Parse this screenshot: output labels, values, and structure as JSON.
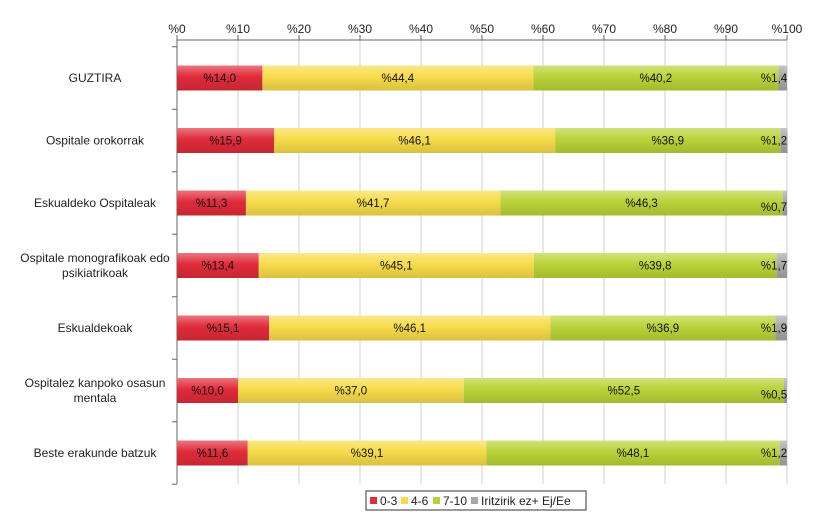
{
  "chart_data": {
    "type": "bar",
    "orientation": "horizontal",
    "stacked": true,
    "xlim": [
      0,
      100
    ],
    "x_ticks": [
      "%0",
      "%10",
      "%20",
      "%30",
      "%40",
      "%50",
      "%60",
      "%70",
      "%80",
      "%90",
      "%100"
    ],
    "categories": [
      [
        "GUZTIRA"
      ],
      [
        "Ospitale  orokorrak"
      ],
      [
        "Eskualdeko Ospitaleak"
      ],
      [
        "Ospitale monografikoak edo",
        "psikiatrikoak"
      ],
      [
        "Eskualdekoak"
      ],
      [
        "Ospitalez  kanpoko osasun",
        "mentala"
      ],
      [
        "Beste erakunde batzuk"
      ]
    ],
    "series": [
      {
        "name": "0-3",
        "color": "#e02b3a",
        "values": [
          14.0,
          15.9,
          11.3,
          13.4,
          15.1,
          10.0,
          11.6
        ],
        "labels": [
          "%14,0",
          "%15,9",
          "%11,3",
          "%13,4",
          "%15,1",
          "%10,0",
          "%11,6"
        ]
      },
      {
        "name": "4-6",
        "color": "#f7db4a",
        "values": [
          44.4,
          46.1,
          41.7,
          45.1,
          46.1,
          37.0,
          39.1
        ],
        "labels": [
          "%44,4",
          "%46,1",
          "%41,7",
          "%45,1",
          "%46,1",
          "%37,0",
          "%39,1"
        ]
      },
      {
        "name": "7-10",
        "color": "#b9d337",
        "values": [
          40.2,
          36.9,
          46.3,
          39.8,
          36.9,
          52.5,
          48.1
        ],
        "labels": [
          "%40,2",
          "%36,9",
          "%46,3",
          "%39,8",
          "%36,9",
          "%52,5",
          "%48,1"
        ]
      },
      {
        "name": "Iritzirik ez+ Ej/Ee",
        "color": "#a7a7a7",
        "values": [
          1.4,
          1.2,
          0.7,
          1.7,
          1.9,
          0.5,
          1.2
        ],
        "labels": [
          "%1,4",
          "%1,2",
          "%0,7",
          "%1,7",
          "%1,9",
          "%0,5",
          "%1,2"
        ]
      }
    ],
    "grid": "vertical",
    "legend_position": "bottom"
  }
}
